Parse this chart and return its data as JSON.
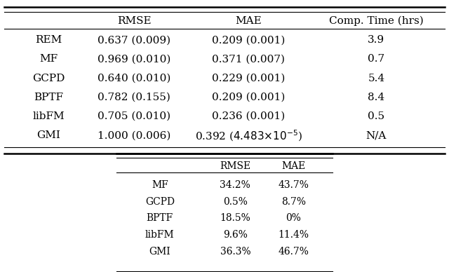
{
  "table1": {
    "headers": [
      "",
      "RMSE",
      "MAE",
      "Comp. Time (hrs)"
    ],
    "rows": [
      [
        "REM",
        "0.637 (0.009)",
        "0.209 (0.001)",
        "3.9"
      ],
      [
        "MF",
        "0.969 (0.010)",
        "0.371 (0.007)",
        "0.7"
      ],
      [
        "GCPD",
        "0.640 (0.010)",
        "0.229 (0.001)",
        "5.4"
      ],
      [
        "BPTF",
        "0.782 (0.155)",
        "0.209 (0.001)",
        "8.4"
      ],
      [
        "libFM",
        "0.705 (0.010)",
        "0.236 (0.001)",
        "0.5"
      ],
      [
        "GMI",
        "1.000 (0.006)",
        "0.392 ($4.483{\\times}10^{-5}$)",
        "N/A"
      ]
    ]
  },
  "table2": {
    "headers": [
      "",
      "RMSE",
      "MAE"
    ],
    "rows": [
      [
        "MF",
        "34.2%",
        "43.7%"
      ],
      [
        "GCPD",
        "0.5%",
        "8.7%"
      ],
      [
        "BPTF",
        "18.5%",
        "0%"
      ],
      [
        "libFM",
        "9.6%",
        "11.4%"
      ],
      [
        "GMI",
        "36.3%",
        "46.7%"
      ]
    ]
  },
  "bg_color": "#ffffff",
  "font_size": 11,
  "font_size2": 10
}
